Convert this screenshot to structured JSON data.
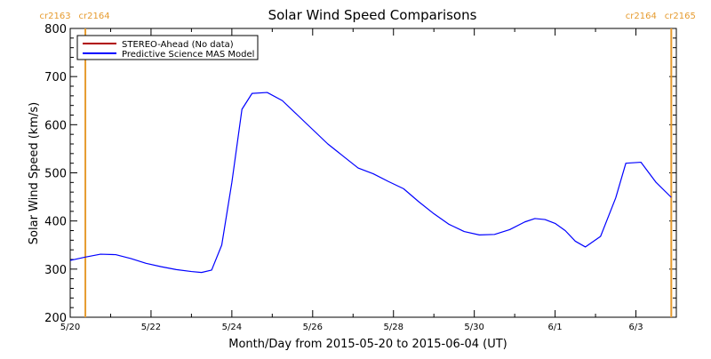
{
  "chart_data": {
    "type": "line",
    "title": "Solar Wind Speed Comparisons",
    "xlabel": "Month/Day from 2015-05-20 to 2015-06-04 (UT)",
    "ylabel": "Solar Wind Speed (km/s)",
    "xlim": [
      "2015-05-20T00:00",
      "2015-06-04T00:00"
    ],
    "ylim": [
      200,
      800
    ],
    "x_ticks": [
      "5/20",
      "5/22",
      "5/24",
      "5/26",
      "5/28",
      "5/30",
      "6/1",
      "6/3"
    ],
    "y_ticks": [
      "200",
      "300",
      "400",
      "500",
      "600",
      "700",
      "800"
    ],
    "legend": {
      "position": "top-left",
      "entries": [
        {
          "label": "STEREO-Ahead (No data)",
          "color": "#b00000"
        },
        {
          "label": "Predictive Science MAS Model",
          "color": "#0000ff"
        }
      ]
    },
    "rotation_markers": [
      {
        "x": "2015-05-20T09:00",
        "left_label": "cr2163",
        "right_label": "cr2164",
        "color": "#e69b2f"
      },
      {
        "x": "2015-06-03T21:00",
        "left_label": "cr2164",
        "right_label": "cr2165",
        "color": "#e69b2f"
      }
    ],
    "series": [
      {
        "name": "STEREO-Ahead (No data)",
        "color": "#b00000",
        "x": [],
        "y": []
      },
      {
        "name": "Predictive Science MAS Model",
        "color": "#0000ff",
        "x": [
          "2015-05-20T00:00",
          "2015-05-20T09:00",
          "2015-05-20T18:00",
          "2015-05-21T03:00",
          "2015-05-21T12:00",
          "2015-05-21T21:00",
          "2015-05-22T06:00",
          "2015-05-22T15:00",
          "2015-05-23T00:00",
          "2015-05-23T06:00",
          "2015-05-23T12:00",
          "2015-05-23T18:00",
          "2015-05-24T00:00",
          "2015-05-24T06:00",
          "2015-05-24T12:00",
          "2015-05-24T21:00",
          "2015-05-25T06:00",
          "2015-05-25T15:00",
          "2015-05-26T00:00",
          "2015-05-26T09:00",
          "2015-05-26T18:00",
          "2015-05-27T03:00",
          "2015-05-27T12:00",
          "2015-05-27T21:00",
          "2015-05-28T06:00",
          "2015-05-28T15:00",
          "2015-05-29T00:00",
          "2015-05-29T09:00",
          "2015-05-29T18:00",
          "2015-05-30T03:00",
          "2015-05-30T12:00",
          "2015-05-30T21:00",
          "2015-05-31T06:00",
          "2015-05-31T12:00",
          "2015-05-31T18:00",
          "2015-06-01T00:00",
          "2015-06-01T06:00",
          "2015-06-01T12:00",
          "2015-06-01T18:00",
          "2015-06-02T03:00",
          "2015-06-02T12:00",
          "2015-06-02T18:00",
          "2015-06-03T03:00",
          "2015-06-03T12:00",
          "2015-06-03T21:00"
        ],
        "y": [
          318,
          325,
          331,
          330,
          322,
          312,
          305,
          299,
          295,
          293,
          298,
          350,
          480,
          632,
          665,
          667,
          650,
          620,
          590,
          560,
          535,
          510,
          498,
          482,
          467,
          440,
          415,
          393,
          378,
          371,
          372,
          382,
          398,
          405,
          403,
          395,
          380,
          358,
          346,
          368,
          448,
          520,
          522,
          480,
          449
        ]
      }
    ]
  }
}
